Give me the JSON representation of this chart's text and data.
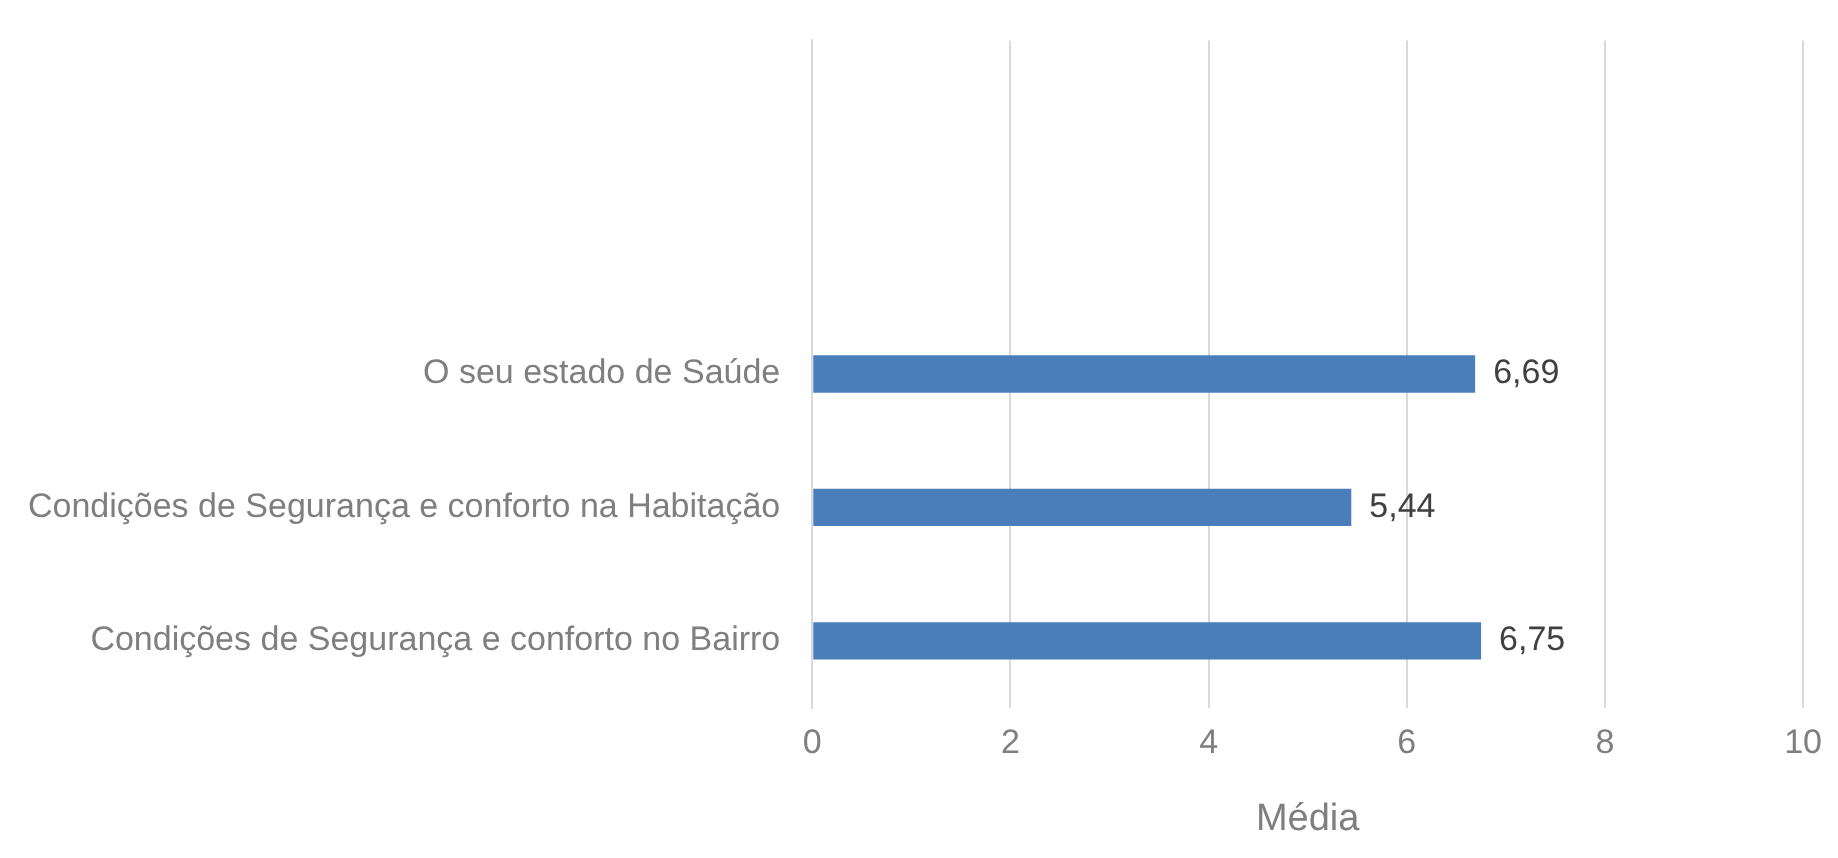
{
  "chart_data": {
    "type": "bar",
    "orientation": "horizontal",
    "categories": [
      null,
      null,
      "O seu estado de Saúde",
      "Condições de Segurança e conforto na Habitação",
      "Condições de Segurança e conforto no Bairro"
    ],
    "values": [
      null,
      null,
      6.69,
      5.44,
      6.75
    ],
    "value_labels": [
      null,
      null,
      "6,69",
      "5,44",
      "6,75"
    ],
    "color": "#4a7ebb",
    "xlim": [
      0,
      10
    ],
    "xticks": [
      0,
      2,
      4,
      6,
      8,
      10
    ],
    "xlabel": "Média",
    "grid": "x",
    "legend": false
  }
}
